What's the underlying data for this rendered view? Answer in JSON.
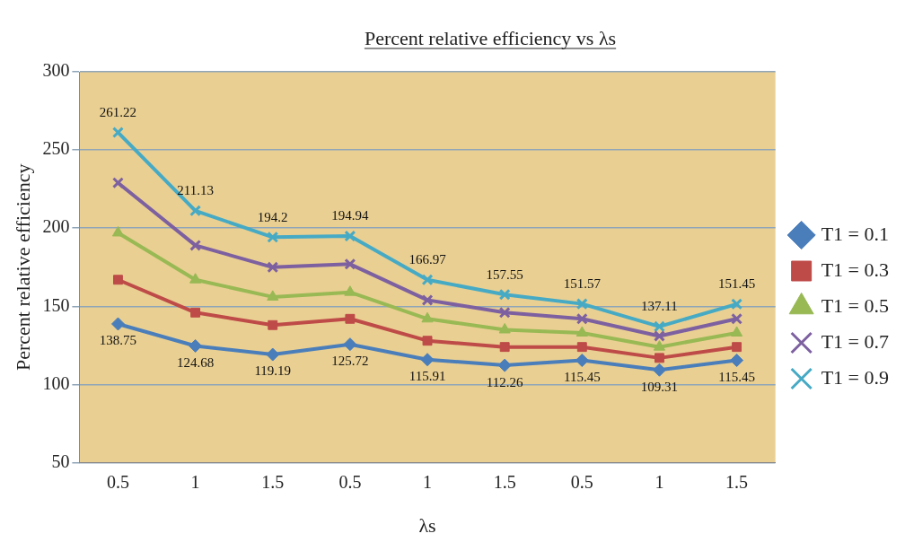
{
  "chart_data": {
    "type": "line",
    "title": "Percent relative efficiency vs λs",
    "xlabel": "λs",
    "ylabel": "Percent relative efficiency",
    "categories": [
      "0.5",
      "1",
      "1.5",
      "0.5",
      "1",
      "1.5",
      "0.5",
      "1",
      "1.5"
    ],
    "series": [
      {
        "name": "T1 = 0.1",
        "color": "#4a7ebb",
        "marker": "diamond",
        "values": [
          138.75,
          124.68,
          119.19,
          125.72,
          115.91,
          112.26,
          115.45,
          109.31,
          115.45
        ],
        "value_labels": [
          "138.75",
          "124.68",
          "119.19",
          "125.72",
          "115.91",
          "112.26",
          "115.45",
          "109.31",
          "115.45"
        ]
      },
      {
        "name": "T1 = 0.3",
        "color": "#be4b48",
        "marker": "square",
        "values": [
          167,
          146,
          138,
          142,
          128,
          124,
          124,
          117,
          124
        ]
      },
      {
        "name": "T1 = 0.5",
        "color": "#98b954",
        "marker": "triangle",
        "values": [
          197,
          167,
          156,
          159,
          142,
          135,
          133,
          124,
          133
        ]
      },
      {
        "name": "T1 = 0.7",
        "color": "#7d60a0",
        "marker": "cross",
        "values": [
          229,
          189,
          175,
          177,
          154,
          146,
          142,
          131,
          142
        ]
      },
      {
        "name": "T1 = 0.9",
        "color": "#46aac5",
        "marker": "cross",
        "values": [
          261.22,
          211.13,
          194.2,
          194.94,
          166.97,
          157.55,
          151.57,
          137.11,
          151.45
        ],
        "value_labels": [
          "261.22",
          "211.13",
          "194.2",
          "194.94",
          "166.97",
          "157.55",
          "151.57",
          "137.11",
          "151.45"
        ]
      }
    ],
    "ylim": [
      50,
      300
    ],
    "yticks": [
      50,
      100,
      150,
      200,
      250,
      300
    ],
    "grid": "y",
    "legend": "right",
    "line_style": "solid"
  }
}
